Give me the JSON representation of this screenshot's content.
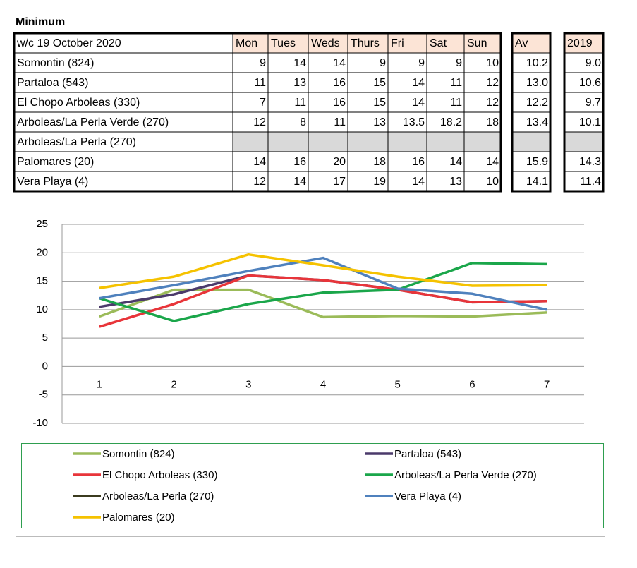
{
  "title": "Minimum",
  "table": {
    "header": [
      "w/c 19 October 2020",
      "Mon",
      "Tues",
      "Weds",
      "Thurs",
      "Fri",
      "Sat",
      "Sun",
      "Av",
      "2019"
    ],
    "rows": [
      {
        "name": "Somontin (824)",
        "days": [
          "9",
          "14",
          "14",
          "9",
          "9",
          "9",
          "10"
        ],
        "av": "10.2",
        "y2019": "9.0"
      },
      {
        "name": "Partaloa (543)",
        "days": [
          "11",
          "13",
          "16",
          "15",
          "14",
          "11",
          "12"
        ],
        "av": "13.0",
        "y2019": "10.6"
      },
      {
        "name": "El Chopo Arboleas (330)",
        "days": [
          "7",
          "11",
          "16",
          "15",
          "14",
          "11",
          "12"
        ],
        "av": "12.2",
        "y2019": "9.7"
      },
      {
        "name": "Arboleas/La Perla Verde (270)",
        "days": [
          "12",
          "8",
          "11",
          "13",
          "13.5",
          "18.2",
          "18"
        ],
        "av": "13.4",
        "y2019": "10.1"
      },
      {
        "name": "Arboleas/La Perla (270)"
      },
      {
        "name": "Palomares (20)",
        "days": [
          "14",
          "16",
          "20",
          "18",
          "16",
          "14",
          "14"
        ],
        "av": "15.9",
        "y2019": "14.3"
      },
      {
        "name": "Vera Playa (4)",
        "days": [
          "12",
          "14",
          "17",
          "19",
          "14",
          "13",
          "10"
        ],
        "av": "14.1",
        "y2019": "11.4"
      }
    ]
  },
  "chart_data": {
    "type": "line",
    "categories": [
      1,
      2,
      3,
      4,
      5,
      6,
      7
    ],
    "ylim": [
      -10,
      25
    ],
    "yticks": [
      -10,
      -5,
      0,
      5,
      10,
      15,
      20,
      25
    ],
    "grid": true,
    "series": [
      {
        "name": "Somontin (824)",
        "color": "#9bbb59",
        "values": [
          8.8,
          13.5,
          13.5,
          8.7,
          8.9,
          8.8,
          9.5
        ]
      },
      {
        "name": "Partaloa (543)",
        "color": "#4b3a6b",
        "values": [
          10.5,
          12.7,
          16,
          15.2,
          13.5,
          11.3,
          11.5
        ]
      },
      {
        "name": "El Chopo Arboleas (330)",
        "color": "#e8353a",
        "values": [
          7,
          11,
          16,
          15.2,
          13.5,
          11.3,
          11.5
        ]
      },
      {
        "name": "Arboleas/La Perla Verde (270)",
        "color": "#1aa64a",
        "values": [
          12,
          8,
          11,
          13,
          13.5,
          18.2,
          18
        ]
      },
      {
        "name": "Arboleas/La Perla (270)",
        "color": "#3b3b1f",
        "values": [
          null,
          null,
          null,
          null,
          null,
          null,
          null
        ]
      },
      {
        "name": "Vera Playa (4)",
        "color": "#4f81bd",
        "values": [
          12,
          14.3,
          16.8,
          19.1,
          13.7,
          12.8,
          10
        ]
      },
      {
        "name": "Palomares (20)",
        "color": "#f5c200",
        "values": [
          13.8,
          15.8,
          19.7,
          17.8,
          15.8,
          14.2,
          14.3
        ]
      }
    ]
  }
}
